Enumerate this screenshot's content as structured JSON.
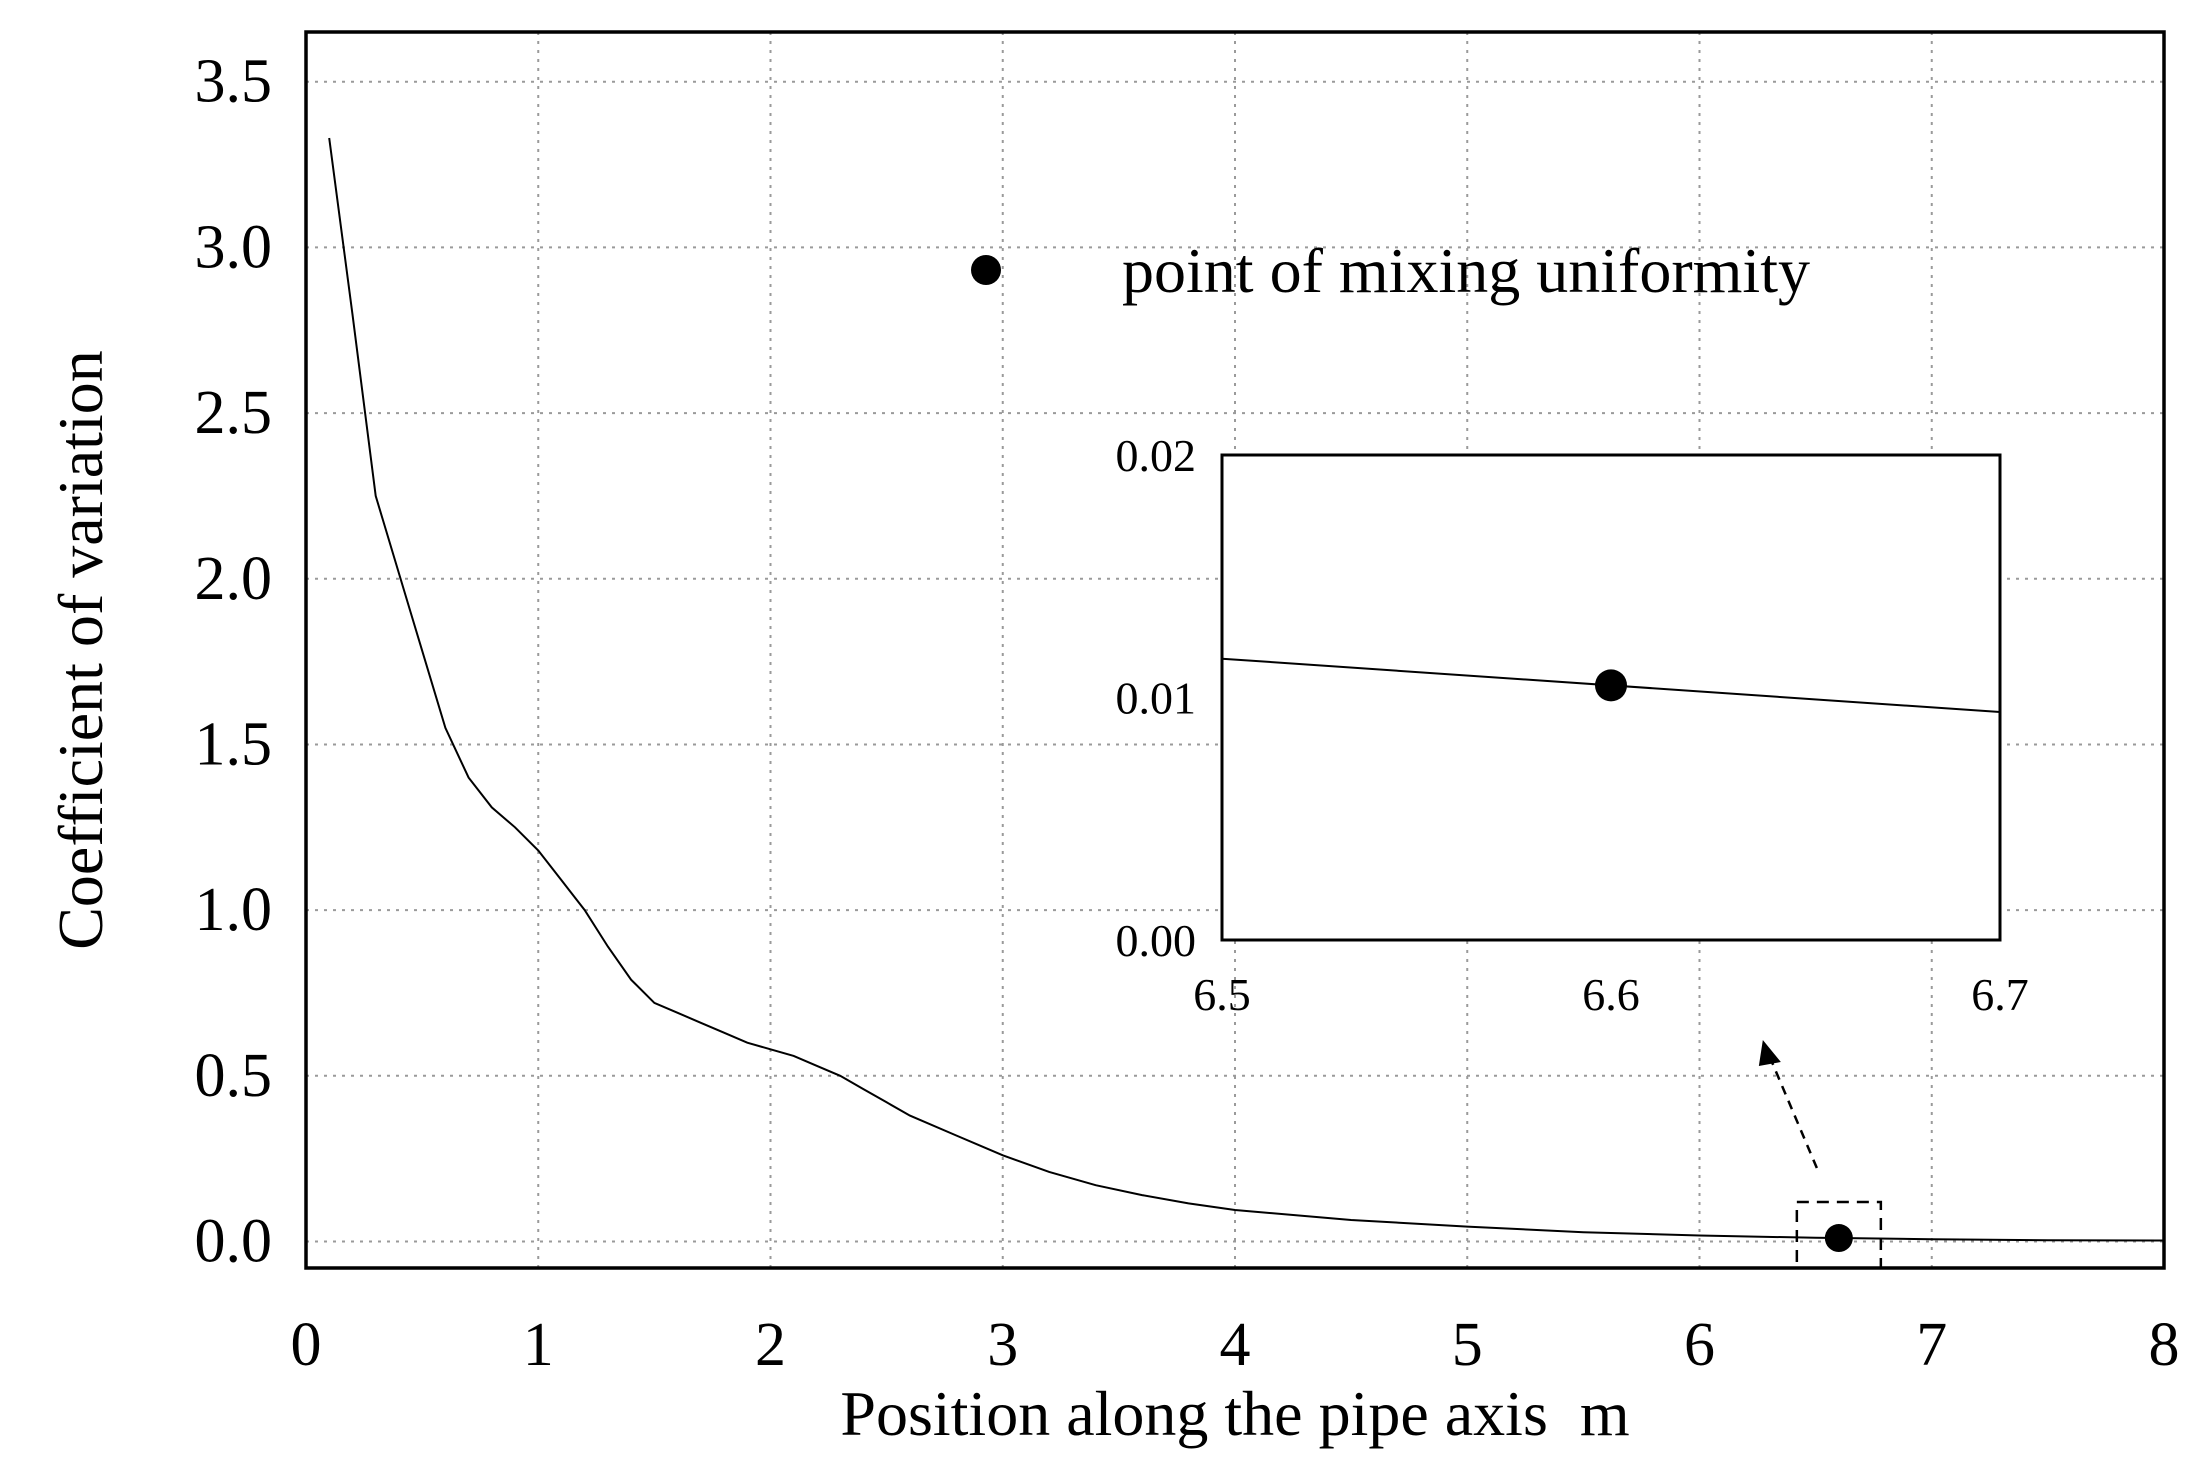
{
  "chart_data": {
    "type": "line",
    "xlabel": "Position along the pipe axis  m",
    "ylabel": "Coefficient of variation",
    "xlim": [
      0,
      8
    ],
    "ylim": [
      -0.08,
      3.65
    ],
    "x_ticks": [
      "0",
      "1",
      "2",
      "3",
      "4",
      "5",
      "6",
      "7",
      "8"
    ],
    "y_ticks": [
      "0.0",
      "0.5",
      "1.0",
      "1.5",
      "2.0",
      "2.5",
      "3.0",
      "3.5"
    ],
    "grid": true,
    "legend": {
      "position": "top-right",
      "marker": "filled-circle",
      "label": "point of mixing uniformity"
    },
    "series": [
      {
        "x": [
          0.1,
          0.2,
          0.3,
          0.45,
          0.6,
          0.7,
          0.8,
          0.9,
          1.0,
          1.1,
          1.2,
          1.3,
          1.4,
          1.5,
          1.6,
          1.7,
          1.8,
          1.9,
          2.0,
          2.1,
          2.2,
          2.3,
          2.4,
          2.5,
          2.6,
          2.8,
          3.0,
          3.2,
          3.4,
          3.6,
          3.8,
          4.0,
          4.5,
          5.0,
          5.5,
          6.0,
          6.5,
          6.6,
          7.0,
          7.5,
          8.0
        ],
        "y": [
          3.33,
          2.8,
          2.25,
          1.9,
          1.55,
          1.4,
          1.31,
          1.25,
          1.18,
          1.09,
          1.0,
          0.89,
          0.79,
          0.72,
          0.69,
          0.66,
          0.63,
          0.6,
          0.58,
          0.56,
          0.53,
          0.5,
          0.46,
          0.42,
          0.38,
          0.32,
          0.26,
          0.21,
          0.17,
          0.14,
          0.115,
          0.095,
          0.065,
          0.045,
          0.028,
          0.018,
          0.011,
          0.0105,
          0.007,
          0.004,
          0.003
        ]
      }
    ],
    "highlight_point": {
      "x": 6.6,
      "y": 0.0105,
      "label": "point of mixing uniformity"
    },
    "inset": {
      "xlim": [
        6.5,
        6.7
      ],
      "ylim": [
        0.0,
        0.02
      ],
      "x_ticks": [
        "6.5",
        "6.6",
        "6.7"
      ],
      "y_ticks": [
        "0.00",
        "0.01",
        "0.02"
      ],
      "line": {
        "x": [
          6.5,
          6.7
        ],
        "y": [
          0.0116,
          0.0094
        ]
      },
      "point": {
        "x": 6.6,
        "y": 0.0105
      }
    }
  }
}
